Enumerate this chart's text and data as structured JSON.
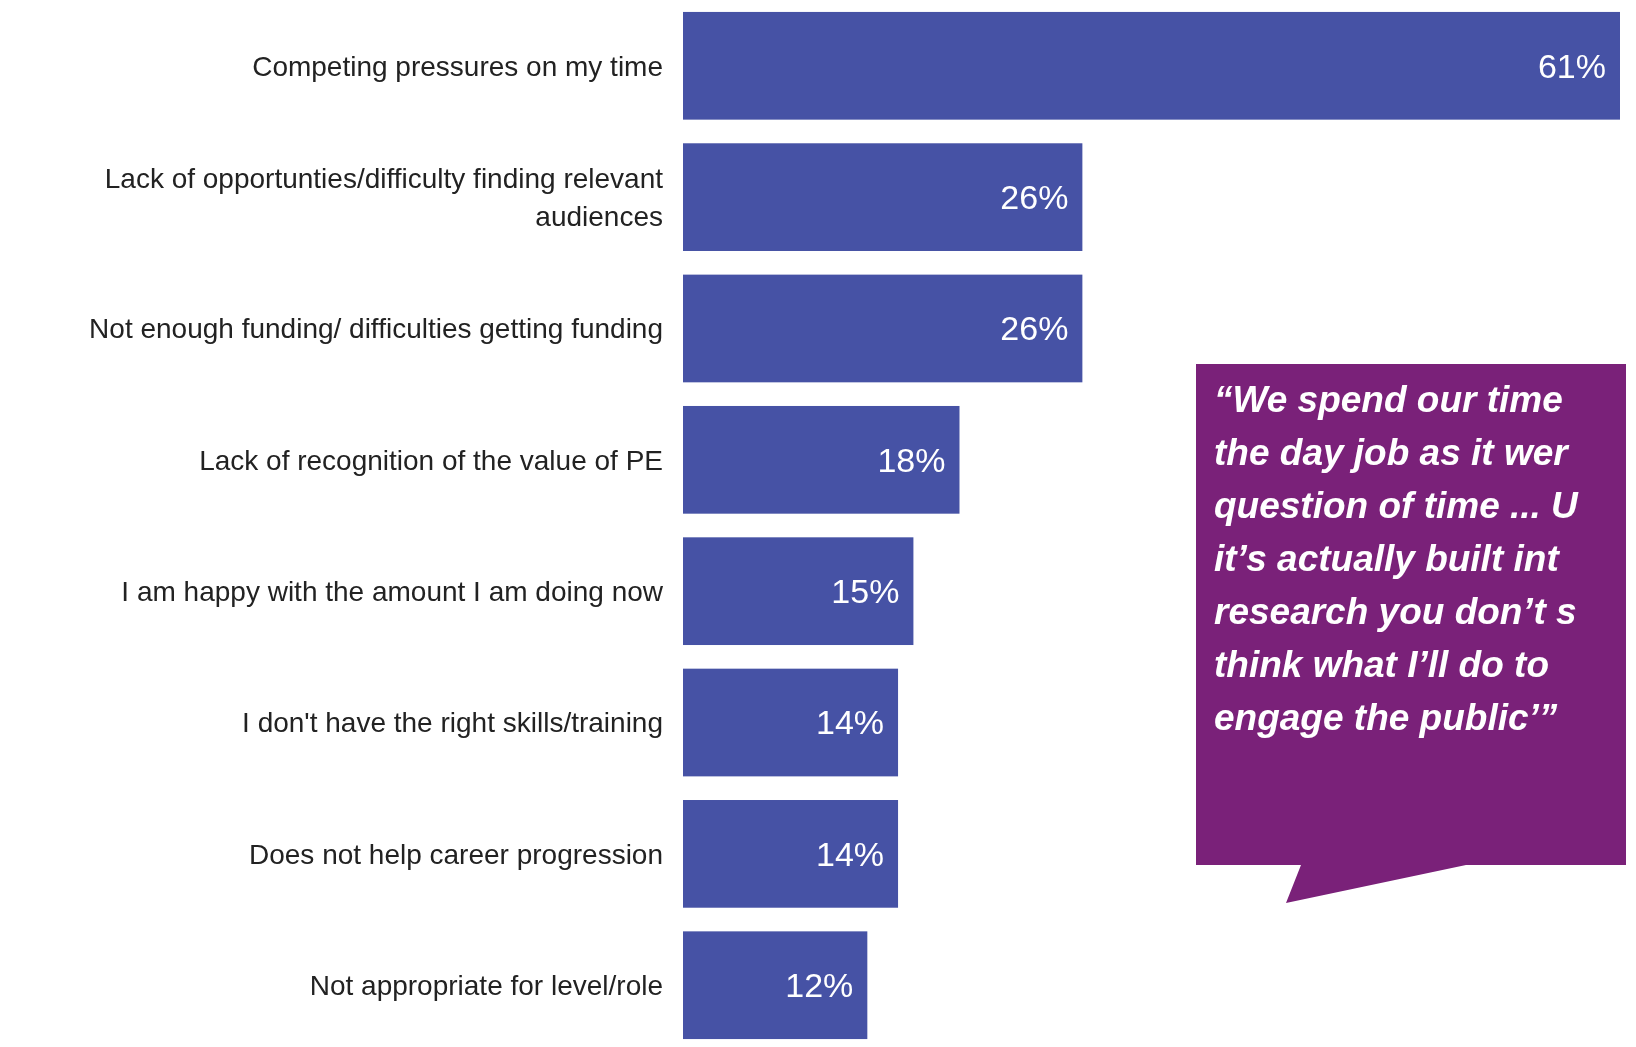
{
  "chart_data": {
    "type": "bar",
    "orientation": "horizontal",
    "categories": [
      "Competing pressures on my time",
      "Lack of opportunties/difficulty finding relevant audiences",
      "Not enough funding/ difficulties getting funding",
      "Lack of recognition of the value of PE",
      "I am happy with the amount I am doing now",
      "I don't have the right skills/training",
      "Does not help career progression",
      "Not appropriate for level/role"
    ],
    "values": [
      61,
      26,
      26,
      18,
      15,
      14,
      14,
      12
    ],
    "color": "#4652a5",
    "value_labels": [
      "61%",
      "26%",
      "26%",
      "18%",
      "15%",
      "14%",
      "14%",
      "12%"
    ],
    "annotations": [
      "“We spend our time\nthe day job as it wer\nquestion of time ... U\nit’s actually built int\nresearch you don’t s\nthink what I’ll do to\nengage the public’”"
    ]
  }
}
